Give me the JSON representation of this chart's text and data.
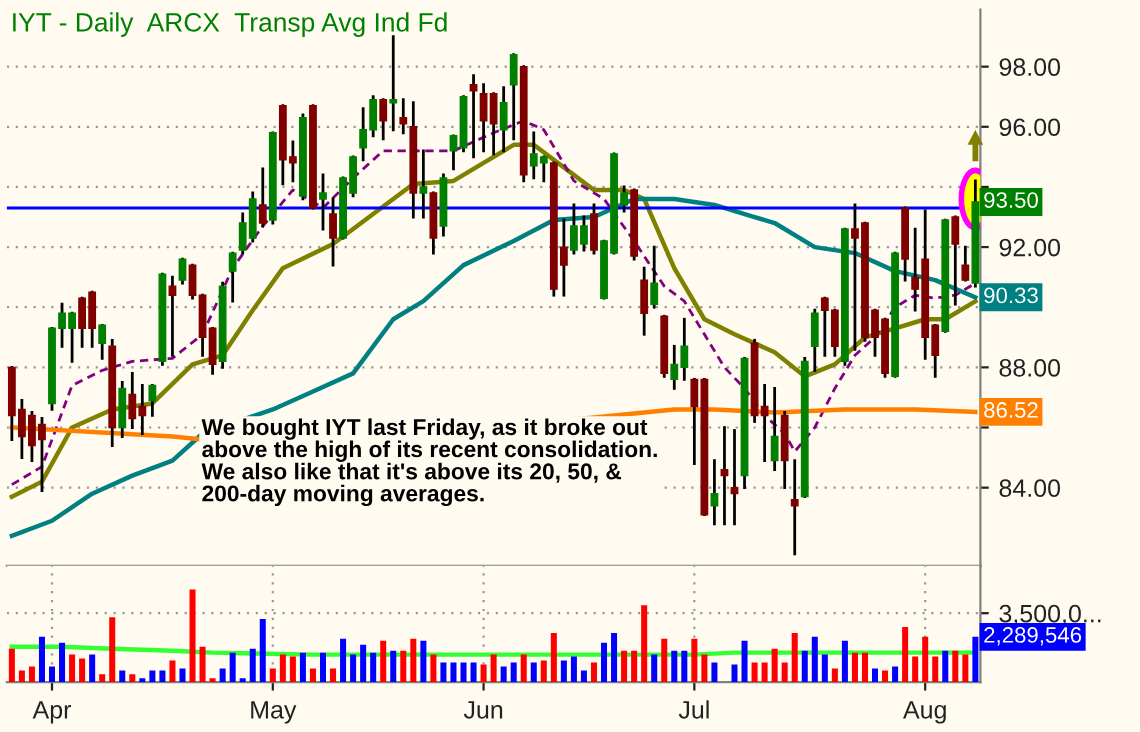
{
  "chart_data": [
    {
      "type": "candlestick",
      "title": "IYT - Daily  ARCX  Transp Avg Ind Fd",
      "categories": [
        null,
        null,
        null,
        null,
        null,
        null,
        null,
        null,
        null,
        null,
        null,
        null,
        null,
        null,
        null,
        null,
        null,
        null,
        null,
        null,
        null,
        null,
        null,
        null,
        null,
        null,
        null,
        null,
        null,
        null,
        null,
        null,
        null,
        null,
        null,
        null,
        null,
        null,
        null,
        null,
        null,
        null,
        null,
        null,
        null,
        null,
        null,
        null,
        null,
        null,
        null,
        null,
        null,
        null,
        null,
        null,
        null,
        null,
        null,
        null,
        null,
        null,
        null,
        null,
        null,
        null,
        null,
        null,
        null,
        null,
        null,
        null,
        null,
        null,
        null,
        null,
        null,
        null,
        null,
        null,
        null,
        null,
        null,
        null,
        null,
        null,
        null,
        null,
        null,
        null,
        null,
        null,
        null,
        null,
        null,
        null,
        null
      ],
      "ohlc": [
        [
          88.0,
          88.0,
          85.6,
          86.4
        ],
        [
          86.6,
          86.9,
          85.0,
          85.7
        ],
        [
          86.4,
          86.5,
          84.9,
          85.4
        ],
        [
          86.1,
          86.3,
          83.9,
          85.6
        ],
        [
          86.8,
          89.3,
          86.6,
          89.3
        ],
        [
          89.3,
          90.1,
          88.7,
          89.8
        ],
        [
          89.3,
          89.8,
          88.2,
          89.8
        ],
        [
          90.3,
          90.3,
          88.7,
          89.3
        ],
        [
          90.5,
          90.5,
          88.7,
          89.3
        ],
        [
          88.8,
          89.4,
          88.3,
          89.4
        ],
        [
          88.7,
          88.9,
          85.4,
          86.0
        ],
        [
          86.0,
          87.5,
          85.7,
          87.3
        ],
        [
          87.1,
          87.8,
          86.0,
          86.3
        ],
        [
          86.7,
          87.4,
          85.8,
          86.4
        ],
        [
          86.9,
          87.4,
          86.4,
          87.4
        ],
        [
          88.2,
          91.1,
          88.1,
          91.1
        ],
        [
          90.7,
          91.0,
          88.4,
          90.4
        ],
        [
          90.9,
          91.6,
          90.8,
          91.6
        ],
        [
          91.4,
          91.4,
          90.3,
          90.4
        ],
        [
          90.4,
          90.4,
          88.4,
          89.0
        ],
        [
          89.3,
          89.3,
          87.8,
          88.1
        ],
        [
          88.2,
          90.8,
          88.0,
          90.7
        ],
        [
          91.2,
          91.8,
          90.2,
          91.8
        ],
        [
          91.9,
          93.1,
          91.8,
          92.8
        ],
        [
          92.3,
          93.8,
          92.2,
          93.6
        ],
        [
          93.4,
          94.6,
          92.7,
          92.8
        ],
        [
          92.9,
          95.8,
          92.8,
          95.8
        ],
        [
          96.7,
          96.7,
          94.1,
          94.9
        ],
        [
          95.0,
          95.5,
          94.2,
          94.8
        ],
        [
          93.7,
          96.4,
          93.6,
          96.3
        ],
        [
          96.7,
          96.7,
          93.3,
          93.3
        ],
        [
          93.6,
          94.4,
          92.6,
          93.8
        ],
        [
          93.1,
          93.6,
          91.4,
          92.3
        ],
        [
          92.3,
          94.3,
          92.3,
          94.3
        ],
        [
          93.8,
          95.0,
          93.7,
          95.0
        ],
        [
          95.3,
          96.6,
          94.9,
          95.9
        ],
        [
          95.9,
          97.0,
          95.7,
          96.9
        ],
        [
          96.9,
          96.9,
          95.6,
          96.2
        ],
        [
          96.8,
          99.0,
          95.9,
          96.9
        ],
        [
          96.3,
          96.9,
          95.8,
          96.1
        ],
        [
          96.0,
          96.8,
          93.0,
          93.8
        ],
        [
          93.8,
          95.2,
          93.0,
          94.0
        ],
        [
          93.8,
          93.8,
          91.8,
          92.3
        ],
        [
          92.7,
          94.4,
          92.4,
          94.3
        ],
        [
          95.2,
          95.7,
          94.6,
          95.7
        ],
        [
          95.3,
          97.0,
          95.2,
          97.0
        ],
        [
          97.4,
          97.7,
          95.0,
          97.2
        ],
        [
          97.1,
          97.4,
          95.2,
          96.2
        ],
        [
          97.1,
          97.1,
          95.1,
          96.1
        ],
        [
          95.9,
          97.3,
          95.2,
          96.8
        ],
        [
          97.4,
          98.4,
          95.6,
          98.4
        ],
        [
          98.0,
          98.0,
          94.2,
          94.4
        ],
        [
          94.7,
          95.8,
          94.3,
          95.1
        ],
        [
          94.8,
          95.0,
          94.2,
          95.0
        ],
        [
          94.8,
          94.8,
          90.4,
          90.6
        ],
        [
          92.0,
          92.9,
          90.4,
          91.4
        ],
        [
          91.9,
          93.4,
          91.8,
          92.7
        ],
        [
          92.1,
          93.0,
          91.9,
          92.7
        ],
        [
          93.1,
          93.4,
          91.8,
          91.9
        ],
        [
          90.3,
          92.2,
          90.3,
          92.2
        ],
        [
          91.8,
          95.1,
          91.8,
          95.1
        ],
        [
          93.4,
          94.0,
          93.2,
          93.8
        ],
        [
          93.9,
          93.9,
          91.6,
          91.7
        ],
        [
          90.9,
          91.3,
          89.1,
          89.8
        ],
        [
          90.1,
          92.0,
          90.0,
          90.8
        ],
        [
          89.7,
          89.7,
          87.7,
          87.8
        ],
        [
          87.6,
          88.7,
          87.3,
          88.1
        ],
        [
          88.0,
          89.6,
          87.6,
          88.7
        ],
        [
          87.6,
          87.6,
          84.8,
          86.7
        ],
        [
          87.6,
          87.6,
          83.1,
          83.1
        ],
        [
          83.4,
          84.9,
          82.8,
          83.8
        ],
        [
          84.6,
          86.0,
          82.8,
          84.4
        ],
        [
          84.0,
          85.9,
          82.8,
          83.8
        ],
        [
          84.4,
          88.3,
          84.0,
          88.3
        ],
        [
          88.8,
          88.9,
          86.2,
          86.4
        ],
        [
          86.7,
          87.4,
          84.9,
          86.4
        ],
        [
          84.9,
          87.3,
          84.6,
          85.7
        ],
        [
          86.4,
          86.5,
          84.0,
          84.9
        ],
        [
          83.6,
          84.9,
          81.8,
          83.4
        ],
        [
          83.7,
          88.3,
          83.7,
          88.2
        ],
        [
          88.7,
          89.9,
          87.9,
          89.8
        ],
        [
          90.3,
          90.3,
          88.4,
          89.9
        ],
        [
          89.9,
          89.9,
          88.4,
          88.7
        ],
        [
          88.2,
          92.6,
          88.1,
          92.6
        ],
        [
          92.6,
          93.4,
          88.6,
          92.3
        ],
        [
          92.8,
          92.8,
          88.9,
          89.0
        ],
        [
          89.9,
          89.9,
          88.4,
          89.0
        ],
        [
          89.6,
          89.6,
          87.7,
          87.8
        ],
        [
          87.7,
          91.8,
          87.7,
          91.8
        ],
        [
          93.3,
          93.3,
          90.9,
          91.6
        ],
        [
          91.0,
          92.6,
          89.9,
          90.6
        ],
        [
          91.6,
          93.2,
          88.3,
          89.0
        ],
        [
          89.4,
          89.4,
          87.7,
          88.4
        ],
        [
          89.2,
          92.9,
          89.2,
          92.9
        ],
        [
          93.0,
          93.0,
          90.1,
          92.1
        ],
        [
          91.4,
          92.0,
          90.9,
          90.9
        ],
        [
          90.8,
          94.2,
          90.7,
          93.5
        ]
      ],
      "colors": [
        "#800000",
        "#800000",
        "#800000",
        "#800000",
        "#008000",
        "#008000",
        "#008000",
        "#800000",
        "#800000",
        "#008000",
        "#800000",
        "#008000",
        "#800000",
        "#800000",
        "#008000",
        "#008000",
        "#800000",
        "#008000",
        "#800000",
        "#800000",
        "#800000",
        "#008000",
        "#008000",
        "#008000",
        "#008000",
        "#800000",
        "#008000",
        "#800000",
        "#800000",
        "#008000",
        "#800000",
        "#008000",
        "#800000",
        "#008000",
        "#008000",
        "#008000",
        "#008000",
        "#800000",
        "#008000",
        "#800000",
        "#800000",
        "#008000",
        "#800000",
        "#008000",
        "#008000",
        "#008000",
        "#800000",
        "#800000",
        "#800000",
        "#008000",
        "#008000",
        "#800000",
        "#008000",
        "#008000",
        "#800000",
        "#800000",
        "#008000",
        "#008000",
        "#800000",
        "#008000",
        "#008000",
        "#008000",
        "#800000",
        "#800000",
        "#008000",
        "#800000",
        "#008000",
        "#008000",
        "#800000",
        "#800000",
        "#008000",
        "#800000",
        "#800000",
        "#008000",
        "#800000",
        "#800000",
        "#008000",
        "#800000",
        "#800000",
        "#008000",
        "#008000",
        "#800000",
        "#800000",
        "#008000",
        "#800000",
        "#800000",
        "#800000",
        "#800000",
        "#008000",
        "#800000",
        "#800000",
        "#800000",
        "#800000",
        "#008000",
        "#800000",
        "#800000",
        "#008000"
      ],
      "value_labels": [
        null,
        null,
        null,
        null,
        null,
        null,
        null,
        null,
        null,
        null,
        null,
        null,
        null,
        null,
        null,
        null,
        null,
        null,
        null,
        null,
        null,
        null,
        null,
        null,
        null,
        null,
        null,
        null,
        null,
        null,
        null,
        null,
        null,
        null,
        null,
        null,
        null,
        null,
        null,
        null,
        null,
        null,
        null,
        null,
        null,
        null,
        null,
        null,
        null,
        null,
        null,
        null,
        null,
        null,
        null,
        null,
        null,
        null,
        null,
        null,
        null,
        null,
        null,
        null,
        null,
        null,
        null,
        null,
        null,
        null,
        null,
        null,
        null,
        null,
        null,
        null,
        null,
        null,
        null,
        null,
        null,
        null,
        null,
        null,
        null,
        null,
        null,
        null,
        null,
        null,
        null,
        null,
        null,
        null,
        null,
        null,
        "93.50"
      ],
      "series": [
        {
          "type": "line",
          "color": "#808000",
          "line_style": "solid",
          "values": [
            83.7,
            null,
            null,
            84.2,
            null,
            null,
            86.0,
            null,
            null,
            null,
            86.6,
            null,
            null,
            null,
            86.8,
            null,
            null,
            null,
            88.1,
            null,
            null,
            88.4,
            null,
            null,
            89.9,
            null,
            null,
            91.3,
            null,
            null,
            null,
            null,
            92.1,
            null,
            null,
            null,
            93.1,
            null,
            null,
            null,
            94.1,
            null,
            null,
            null,
            94.2,
            null,
            null,
            94.8,
            null,
            null,
            95.4,
            null,
            95.4,
            null,
            94.9,
            null,
            null,
            null,
            93.9,
            null,
            null,
            93.9,
            null,
            93.6,
            null,
            null,
            91.3,
            null,
            null,
            89.6,
            null,
            null,
            89.1,
            null,
            null,
            null,
            88.5,
            null,
            null,
            87.7,
            null,
            null,
            88.1,
            null,
            null,
            89.0,
            null,
            null,
            89.3,
            null,
            null,
            89.6,
            null,
            89.6,
            null,
            null,
            90.2
          ]
        },
        {
          "type": "line",
          "color": "#008080",
          "line_style": "solid",
          "values": [
            82.4,
            null,
            null,
            null,
            82.9,
            null,
            null,
            null,
            83.8,
            null,
            null,
            null,
            84.4,
            null,
            null,
            null,
            84.9,
            null,
            null,
            85.8,
            null,
            null,
            null,
            null,
            null,
            null,
            86.6,
            null,
            null,
            null,
            87.2,
            null,
            null,
            null,
            87.8,
            null,
            null,
            null,
            89.6,
            null,
            null,
            90.2,
            null,
            null,
            null,
            91.4,
            null,
            null,
            null,
            null,
            92.2,
            null,
            null,
            null,
            92.9,
            null,
            null,
            null,
            93.0,
            null,
            null,
            null,
            93.6,
            null,
            null,
            null,
            93.6,
            null,
            null,
            null,
            93.4,
            null,
            null,
            null,
            93.0,
            null,
            92.8,
            null,
            null,
            null,
            92.0,
            null,
            null,
            null,
            91.8,
            null,
            null,
            null,
            91.2,
            null,
            null,
            null,
            90.9,
            null,
            null,
            null,
            90.33
          ],
          "value_labels": [
            null,
            null,
            null,
            null,
            null,
            null,
            null,
            null,
            null,
            null,
            null,
            null,
            null,
            null,
            null,
            null,
            null,
            null,
            null,
            null,
            null,
            null,
            null,
            null,
            null,
            null,
            null,
            null,
            null,
            null,
            null,
            null,
            null,
            null,
            null,
            null,
            null,
            null,
            null,
            null,
            null,
            null,
            null,
            null,
            null,
            null,
            null,
            null,
            null,
            null,
            null,
            null,
            null,
            null,
            null,
            null,
            null,
            null,
            null,
            null,
            null,
            null,
            null,
            null,
            null,
            null,
            null,
            null,
            null,
            null,
            null,
            null,
            null,
            null,
            null,
            null,
            null,
            null,
            null,
            null,
            null,
            null,
            null,
            null,
            null,
            null,
            null,
            null,
            null,
            null,
            null,
            null,
            null,
            null,
            null,
            null,
            "90.33"
          ]
        },
        {
          "type": "line",
          "color": "#800080",
          "line_style": "dashed",
          "values": [
            84.1,
            null,
            null,
            84.7,
            null,
            null,
            87.4,
            null,
            null,
            87.9,
            null,
            null,
            88.2,
            null,
            null,
            null,
            88.3,
            null,
            null,
            89.1,
            null,
            null,
            91.3,
            null,
            null,
            92.7,
            null,
            null,
            93.9,
            null,
            null,
            93.3,
            null,
            null,
            94.3,
            null,
            null,
            95.2,
            null,
            null,
            95.2,
            null,
            null,
            null,
            95.2,
            null,
            null,
            null,
            95.8,
            null,
            null,
            96.2,
            null,
            95.9,
            null,
            null,
            94.2,
            null,
            null,
            93.6,
            null,
            null,
            92.2,
            null,
            null,
            90.7,
            null,
            90.2,
            null,
            89.1,
            null,
            88.0,
            null,
            87.3,
            null,
            86.4,
            null,
            85.8,
            85.2,
            null,
            86.0,
            null,
            87.3,
            null,
            88.4,
            null,
            89.0,
            null,
            90.0,
            null,
            90.4,
            null,
            90.3,
            null,
            90.4,
            null,
            90.8
          ]
        },
        {
          "type": "line",
          "color": "#ff8000",
          "line_style": "solid",
          "values": [
            86.0,
            null,
            null,
            null,
            null,
            null,
            null,
            null,
            null,
            null,
            null,
            null,
            null,
            null,
            null,
            null,
            85.7,
            null,
            null,
            85.6,
            null,
            null,
            null,
            null,
            null,
            null,
            null,
            null,
            null,
            null,
            null,
            null,
            null,
            null,
            null,
            null,
            null,
            null,
            null,
            null,
            null,
            null,
            null,
            null,
            null,
            null,
            null,
            null,
            null,
            null,
            null,
            null,
            null,
            null,
            null,
            null,
            null,
            86.3,
            null,
            null,
            null,
            null,
            null,
            null,
            null,
            null,
            86.6,
            null,
            null,
            null,
            86.6,
            null,
            null,
            null,
            null,
            null,
            86.5,
            null,
            null,
            null,
            null,
            null,
            null,
            86.6,
            null,
            null,
            null,
            null,
            null,
            null,
            86.6,
            null,
            null,
            null,
            null,
            null,
            86.52
          ],
          "value_labels": [
            null,
            null,
            null,
            null,
            null,
            null,
            null,
            null,
            null,
            null,
            null,
            null,
            null,
            null,
            null,
            null,
            null,
            null,
            null,
            null,
            null,
            null,
            null,
            null,
            null,
            null,
            null,
            null,
            null,
            null,
            null,
            null,
            null,
            null,
            null,
            null,
            null,
            null,
            null,
            null,
            null,
            null,
            null,
            null,
            null,
            null,
            null,
            null,
            null,
            null,
            null,
            null,
            null,
            null,
            null,
            null,
            null,
            null,
            null,
            null,
            null,
            null,
            null,
            null,
            null,
            null,
            null,
            null,
            null,
            null,
            null,
            null,
            null,
            null,
            null,
            null,
            null,
            null,
            null,
            null,
            null,
            null,
            null,
            null,
            null,
            null,
            null,
            null,
            null,
            null,
            null,
            null,
            null,
            null,
            null,
            null,
            "86.52"
          ]
        }
      ],
      "ref_lines": [
        {
          "axis": "y",
          "value": 93.3,
          "color": "#0000ff"
        }
      ],
      "ylim": [
        81.4,
        99.9
      ],
      "yticks": [
        {
          "value": 84,
          "label": "84.00"
        },
        {
          "value": 86,
          "label": null
        },
        {
          "value": 88,
          "label": "88.00"
        },
        {
          "value": 90,
          "label": null
        },
        {
          "value": 92,
          "label": "92.00"
        },
        {
          "value": 94,
          "label": null
        },
        {
          "value": 96,
          "label": "96.00"
        },
        {
          "value": 98,
          "label": "98.00"
        }
      ],
      "annotations": [
        "We bought IYT last Friday, as it broke out\nabove the high of its recent consolidation.\nWe also like that it's above its 20, 50, &\n200-day moving averages."
      ],
      "grid": true,
      "tick_labels": "y"
    },
    {
      "type": "bar",
      "categories": [
        null,
        null,
        null,
        null,
        "Apr",
        null,
        null,
        null,
        null,
        null,
        null,
        null,
        null,
        null,
        null,
        null,
        null,
        null,
        null,
        null,
        null,
        null,
        null,
        null,
        null,
        null,
        "May",
        null,
        null,
        null,
        null,
        null,
        null,
        null,
        null,
        null,
        null,
        null,
        null,
        null,
        null,
        null,
        null,
        null,
        null,
        null,
        null,
        "Jun",
        null,
        null,
        null,
        null,
        null,
        null,
        null,
        null,
        null,
        null,
        null,
        null,
        null,
        null,
        null,
        null,
        null,
        null,
        null,
        null,
        "Jul",
        null,
        null,
        null,
        null,
        null,
        null,
        null,
        null,
        null,
        null,
        null,
        null,
        null,
        null,
        null,
        null,
        null,
        null,
        null,
        null,
        null,
        null,
        "Aug",
        null,
        null,
        null,
        null,
        null
      ],
      "values": [
        1700000,
        600000,
        800000,
        2300000,
        800000,
        2000000,
        1400000,
        1200000,
        1400000,
        400000,
        3300000,
        600000,
        400000,
        200000,
        600000,
        600000,
        1100000,
        700000,
        4700000,
        1800000,
        200000,
        700000,
        1500000,
        200000,
        1700000,
        3200000,
        700000,
        1400000,
        1300000,
        1500000,
        700000,
        1500000,
        700000,
        2200000,
        1400000,
        1900000,
        1500000,
        2100000,
        1600000,
        1600000,
        2200000,
        2100000,
        1400000,
        1000000,
        1000000,
        1000000,
        1000000,
        900000,
        1400000,
        800000,
        1000000,
        1400000,
        1000000,
        1100000,
        2500000,
        1100000,
        1300000,
        600000,
        1000000,
        2000000,
        2500000,
        1600000,
        1600000,
        3900000,
        1400000,
        2200000,
        1600000,
        1600000,
        2200000,
        1400000,
        1000000,
        null,
        900000,
        2100000,
        1000000,
        1000000,
        1700000,
        1000000,
        2500000,
        1600000,
        2300000,
        1400000,
        700000,
        2100000,
        1500000,
        1500000,
        700000,
        600000,
        800000,
        2800000,
        1300000,
        2300000,
        1300000,
        1600000,
        1600000,
        1400000,
        2300000
      ],
      "annotations": [
        "2,289,546"
      ],
      "colors": [
        "#ff0000",
        "#ff0000",
        "#ff0000",
        "#0000ff",
        "#0000ff",
        "#0000ff",
        "#ff0000",
        "#ff0000",
        "#0000ff",
        "#ff0000",
        "#ff0000",
        "#0000ff",
        "#ff0000",
        "#0000ff",
        "#0000ff",
        "#0000ff",
        "#ff0000",
        "#0000ff",
        "#ff0000",
        "#ff0000",
        "#ff0000",
        "#0000ff",
        "#0000ff",
        "#0000ff",
        "#0000ff",
        "#0000ff",
        "#ff0000",
        "#ff0000",
        "#ff0000",
        "#0000ff",
        "#ff0000",
        "#0000ff",
        "#ff0000",
        "#0000ff",
        "#0000ff",
        "#0000ff",
        "#0000ff",
        "#ff0000",
        "#0000ff",
        "#ff0000",
        "#ff0000",
        "#0000ff",
        "#ff0000",
        "#0000ff",
        "#0000ff",
        "#0000ff",
        "#0000ff",
        "#ff0000",
        "#ff0000",
        "#0000ff",
        "#0000ff",
        "#ff0000",
        "#0000ff",
        "#ff0000",
        "#ff0000",
        "#0000ff",
        "#0000ff",
        "#0000ff",
        "#ff0000",
        "#0000ff",
        "#0000ff",
        "#ff0000",
        "#ff0000",
        "#ff0000",
        "#0000ff",
        "#ff0000",
        "#0000ff",
        "#0000ff",
        "#ff0000",
        "#ff0000",
        "#0000ff",
        "#0000ff",
        "#0000ff",
        "#0000ff",
        "#ff0000",
        "#ff0000",
        "#ff0000",
        "#ff0000",
        "#ff0000",
        "#0000ff",
        "#0000ff",
        "#0000ff",
        "#ff0000",
        "#0000ff",
        "#ff0000",
        "#ff0000",
        "#0000ff",
        "#ff0000",
        "#0000ff",
        "#ff0000",
        "#ff0000",
        "#ff0000",
        "#ff0000",
        "#0000ff",
        "#ff0000",
        "#ff0000",
        "#0000ff"
      ],
      "series": [
        {
          "type": "line",
          "color": "#33ff33",
          "line_style": "solid",
          "values": [
            1800000,
            null,
            null,
            null,
            null,
            1800000,
            null,
            null,
            null,
            null,
            1700000,
            null,
            null,
            null,
            null,
            null,
            1600000,
            null,
            null,
            null,
            1500000,
            null,
            null,
            null,
            null,
            null,
            null,
            null,
            null,
            null,
            1400000,
            null,
            null,
            null,
            null,
            null,
            null,
            null,
            null,
            null,
            1400000,
            null,
            null,
            null,
            null,
            null,
            null,
            null,
            null,
            null,
            1400000,
            null,
            null,
            null,
            null,
            null,
            null,
            null,
            null,
            null,
            1400000,
            null,
            null,
            null,
            null,
            null,
            null,
            null,
            1400000,
            null,
            null,
            null,
            1500000,
            null,
            null,
            null,
            null,
            null,
            null,
            null,
            1500000,
            null,
            null,
            null,
            null,
            null,
            null,
            null,
            1500000,
            null,
            null,
            null,
            null,
            null,
            null,
            null,
            1500000
          ]
        }
      ],
      "ylim": [
        0,
        5900000
      ],
      "yticks": [
        {
          "value": 3500000,
          "label": "3,500,0..."
        }
      ],
      "grid": true
    }
  ]
}
